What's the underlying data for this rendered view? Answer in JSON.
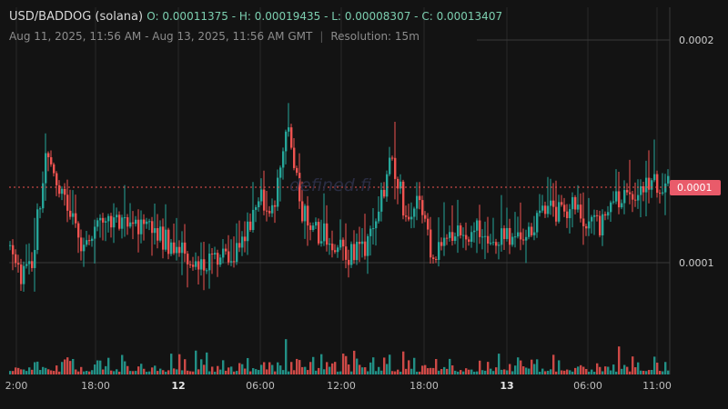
{
  "header": {
    "pair": "USD/BADDOG (solana)",
    "open_label": "O:",
    "open": "0.00011375",
    "high_label": "H:",
    "high": "0.00019435",
    "low_label": "L:",
    "low": "0.00008307",
    "close_label": "C:",
    "close": "0.00013407",
    "range": "Aug 11, 2025, 11:56 AM - Aug 13, 2025, 11:56 AM GMT",
    "resolution": "Resolution: 15m"
  },
  "watermark": "defined.fi",
  "y_axis": {
    "labels": [
      "0.0002",
      "0.0001"
    ],
    "current_price_label": "0.0001"
  },
  "x_axis": {
    "labels": [
      {
        "text": "2:00",
        "bold": false
      },
      {
        "text": "18:00",
        "bold": false
      },
      {
        "text": "12",
        "bold": true
      },
      {
        "text": "06:00",
        "bold": false
      },
      {
        "text": "12:00",
        "bold": false
      },
      {
        "text": "18:00",
        "bold": false
      },
      {
        "text": "13",
        "bold": true
      },
      {
        "text": "06:00",
        "bold": false
      },
      {
        "text": "11:00",
        "bold": false
      }
    ]
  },
  "colors": {
    "up": "#26a69a",
    "down": "#ef5350",
    "background": "#131313",
    "grid": "#2a2a2a"
  },
  "chart_data": {
    "type": "candlestick",
    "interval": "15m",
    "range_start": "Aug 11, 2025, 11:56 AM",
    "range_end": "Aug 13, 2025, 11:56 AM",
    "ohlc_summary": {
      "open": 0.00011375,
      "high": 0.00019435,
      "low": 8.307e-05,
      "close": 0.00013407
    },
    "y_ticks": [
      0.0002,
      0.0001
    ],
    "current_price": 0.0001
  }
}
